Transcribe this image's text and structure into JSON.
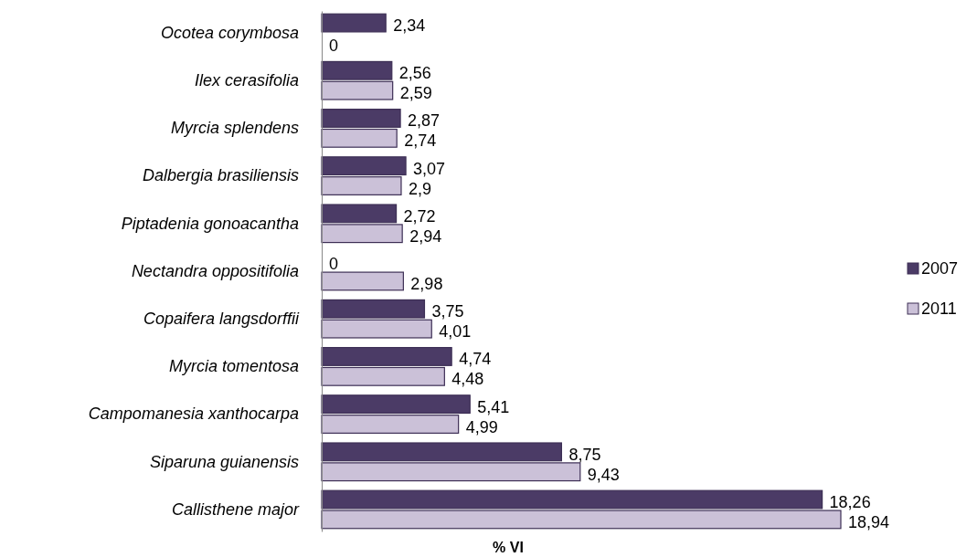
{
  "chart_data": {
    "type": "bar",
    "orientation": "horizontal",
    "xlabel": "% VI",
    "legend": "right",
    "categories": [
      "Ocotea corymbosa",
      "Ilex cerasifolia",
      "Myrcia splendens",
      "Dalbergia brasiliensis",
      "Piptadenia gonoacantha",
      "Nectandra oppositifolia",
      "Copaifera langsdorffii",
      "Myrcia tomentosa",
      "Campomanesia xanthocarpa",
      "Siparuna guianensis",
      "Callisthene major"
    ],
    "series": [
      {
        "name": "2007",
        "color": "#4b3b66",
        "values": [
          2.34,
          2.56,
          2.87,
          3.07,
          2.72,
          0,
          3.75,
          4.74,
          5.41,
          8.75,
          18.26
        ],
        "value_labels": [
          "2,34",
          "2,56",
          "2,87",
          "3,07",
          "2,72",
          "0",
          "3,75",
          "4,74",
          "5,41",
          "8,75",
          "18,26"
        ]
      },
      {
        "name": "2011",
        "color": "#cbc1d8",
        "values": [
          0,
          2.59,
          2.74,
          2.9,
          2.94,
          2.98,
          4.01,
          4.48,
          4.99,
          9.43,
          18.94
        ],
        "value_labels": [
          "0",
          "2,59",
          "2,74",
          "2,9",
          "2,94",
          "2,98",
          "4,01",
          "4,48",
          "4,99",
          "9,43",
          "18,94"
        ]
      }
    ]
  }
}
